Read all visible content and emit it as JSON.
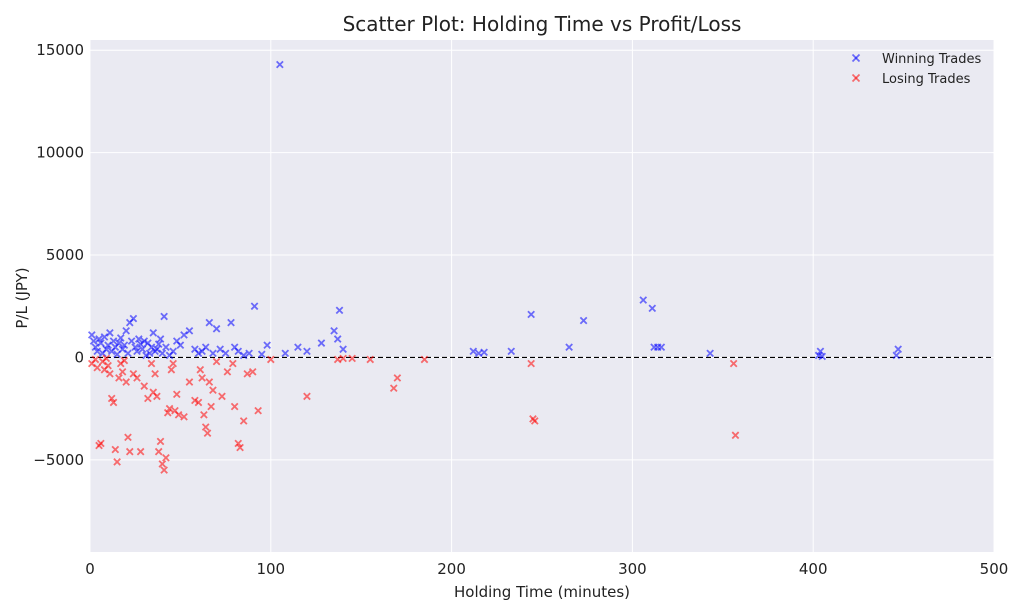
{
  "chart_data": {
    "type": "scatter",
    "title": "Scatter Plot: Holding Time vs Profit/Loss",
    "xlabel": "Holding Time (minutes)",
    "ylabel": "P/L (JPY)",
    "xlim": [
      0,
      500
    ],
    "ylim": [
      -9500,
      15500
    ],
    "xticks": [
      0,
      100,
      200,
      300,
      400,
      500
    ],
    "yticks": [
      -5000,
      0,
      5000,
      10000,
      15000
    ],
    "xtick_labels": [
      "0",
      "100",
      "200",
      "300",
      "400",
      "500"
    ],
    "ytick_labels": [
      "−5000",
      "0",
      "5000",
      "10000",
      "15000"
    ],
    "grid": true,
    "legend_position": "top-right",
    "reference_line": {
      "y": 0,
      "style": "dashed",
      "color": "#000000"
    },
    "marker": "x",
    "series": [
      {
        "name": "Winning Trades",
        "color": "#0000ff",
        "points": [
          [
            1,
            1100
          ],
          [
            2,
            800
          ],
          [
            3,
            500
          ],
          [
            4,
            300
          ],
          [
            5,
            900
          ],
          [
            6,
            700
          ],
          [
            7,
            200
          ],
          [
            8,
            1000
          ],
          [
            9,
            400
          ],
          [
            10,
            600
          ],
          [
            11,
            1200
          ],
          [
            12,
            300
          ],
          [
            13,
            800
          ],
          [
            14,
            500
          ],
          [
            15,
            150
          ],
          [
            16,
            700
          ],
          [
            17,
            950
          ],
          [
            18,
            400
          ],
          [
            19,
            600
          ],
          [
            20,
            1300
          ],
          [
            21,
            200
          ],
          [
            22,
            1700
          ],
          [
            23,
            800
          ],
          [
            24,
            1900
          ],
          [
            25,
            500
          ],
          [
            26,
            300
          ],
          [
            27,
            900
          ],
          [
            28,
            650
          ],
          [
            29,
            400
          ],
          [
            30,
            800
          ],
          [
            31,
            100
          ],
          [
            32,
            700
          ],
          [
            33,
            200
          ],
          [
            34,
            500
          ],
          [
            35,
            1200
          ],
          [
            36,
            300
          ],
          [
            37,
            400
          ],
          [
            38,
            650
          ],
          [
            39,
            900
          ],
          [
            40,
            200
          ],
          [
            41,
            2000
          ],
          [
            42,
            500
          ],
          [
            44,
            100
          ],
          [
            46,
            300
          ],
          [
            48,
            800
          ],
          [
            50,
            600
          ],
          [
            52,
            1100
          ],
          [
            55,
            1300
          ],
          [
            58,
            400
          ],
          [
            60,
            200
          ],
          [
            62,
            300
          ],
          [
            64,
            500
          ],
          [
            66,
            1700
          ],
          [
            68,
            200
          ],
          [
            70,
            1400
          ],
          [
            72,
            400
          ],
          [
            75,
            200
          ],
          [
            78,
            1700
          ],
          [
            80,
            500
          ],
          [
            82,
            300
          ],
          [
            85,
            100
          ],
          [
            88,
            200
          ],
          [
            91,
            2500
          ],
          [
            95,
            150
          ],
          [
            98,
            600
          ],
          [
            105,
            14300
          ],
          [
            108,
            200
          ],
          [
            115,
            500
          ],
          [
            120,
            300
          ],
          [
            128,
            700
          ],
          [
            135,
            1300
          ],
          [
            137,
            900
          ],
          [
            138,
            2300
          ],
          [
            140,
            400
          ],
          [
            212,
            300
          ],
          [
            215,
            200
          ],
          [
            218,
            250
          ],
          [
            233,
            300
          ],
          [
            244,
            2100
          ],
          [
            265,
            500
          ],
          [
            273,
            1800
          ],
          [
            306,
            2800
          ],
          [
            311,
            2400
          ],
          [
            312,
            500
          ],
          [
            314,
            500
          ],
          [
            316,
            500
          ],
          [
            343,
            200
          ],
          [
            403,
            100
          ],
          [
            404,
            300
          ],
          [
            405,
            50
          ],
          [
            446,
            100
          ],
          [
            447,
            400
          ]
        ]
      },
      {
        "name": "Losing Trades",
        "color": "#ff0000",
        "points": [
          [
            1,
            -300
          ],
          [
            3,
            -100
          ],
          [
            4,
            -500
          ],
          [
            5,
            -4300
          ],
          [
            6,
            -4200
          ],
          [
            7,
            -200
          ],
          [
            8,
            -600
          ],
          [
            9,
            -50
          ],
          [
            10,
            -400
          ],
          [
            11,
            -800
          ],
          [
            12,
            -2000
          ],
          [
            13,
            -2200
          ],
          [
            14,
            -4500
          ],
          [
            15,
            -5100
          ],
          [
            16,
            -1000
          ],
          [
            17,
            -300
          ],
          [
            18,
            -700
          ],
          [
            19,
            -150
          ],
          [
            20,
            -1200
          ],
          [
            21,
            -3900
          ],
          [
            22,
            -4600
          ],
          [
            24,
            -800
          ],
          [
            26,
            -1000
          ],
          [
            28,
            -4600
          ],
          [
            30,
            -1400
          ],
          [
            32,
            -2000
          ],
          [
            34,
            -300
          ],
          [
            35,
            -1700
          ],
          [
            36,
            -800
          ],
          [
            37,
            -1900
          ],
          [
            38,
            -4600
          ],
          [
            39,
            -4100
          ],
          [
            40,
            -5200
          ],
          [
            41,
            -5500
          ],
          [
            42,
            -4900
          ],
          [
            43,
            -2700
          ],
          [
            44,
            -2500
          ],
          [
            45,
            -600
          ],
          [
            46,
            -300
          ],
          [
            47,
            -2600
          ],
          [
            48,
            -1800
          ],
          [
            49,
            -2800
          ],
          [
            52,
            -2900
          ],
          [
            55,
            -1200
          ],
          [
            58,
            -2100
          ],
          [
            60,
            -2200
          ],
          [
            61,
            -600
          ],
          [
            62,
            -1000
          ],
          [
            63,
            -2800
          ],
          [
            64,
            -3400
          ],
          [
            65,
            -3700
          ],
          [
            66,
            -1200
          ],
          [
            67,
            -2400
          ],
          [
            68,
            -1600
          ],
          [
            70,
            -200
          ],
          [
            73,
            -1900
          ],
          [
            76,
            -700
          ],
          [
            79,
            -300
          ],
          [
            80,
            -2400
          ],
          [
            82,
            -4200
          ],
          [
            83,
            -4400
          ],
          [
            85,
            -3100
          ],
          [
            87,
            -800
          ],
          [
            90,
            -700
          ],
          [
            93,
            -2600
          ],
          [
            100,
            -100
          ],
          [
            120,
            -1900
          ],
          [
            137,
            -100
          ],
          [
            140,
            -50
          ],
          [
            145,
            -50
          ],
          [
            155,
            -100
          ],
          [
            168,
            -1500
          ],
          [
            170,
            -1000
          ],
          [
            185,
            -100
          ],
          [
            244,
            -300
          ],
          [
            245,
            -3000
          ],
          [
            246,
            -3100
          ],
          [
            356,
            -300
          ],
          [
            357,
            -3800
          ]
        ]
      }
    ]
  }
}
